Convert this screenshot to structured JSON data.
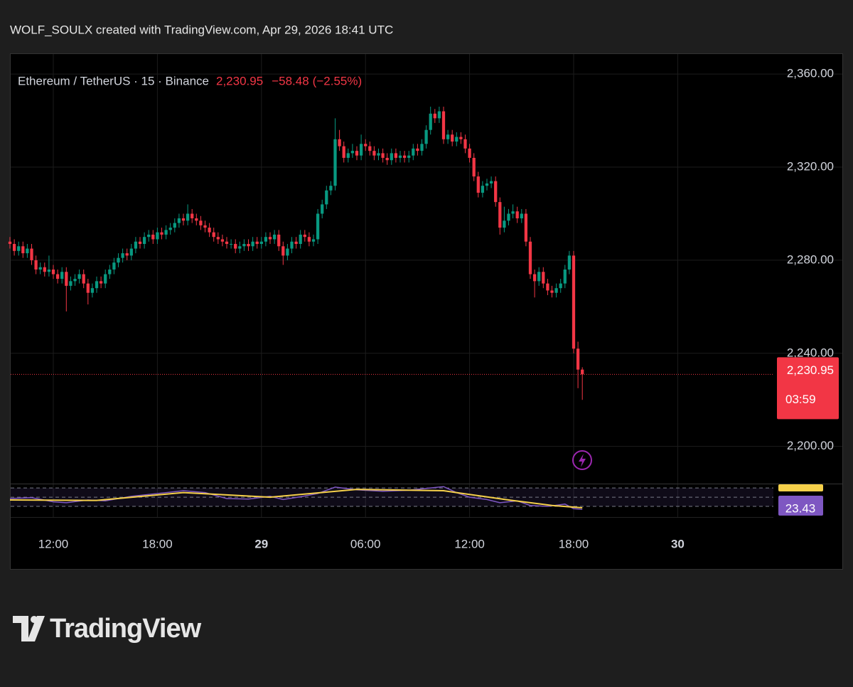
{
  "chart_data": {
    "type": "candlestick",
    "title": "WOLF_SOULX created with TradingView.com, Apr 29, 2026 18:41 UTC",
    "symbol": "Ethereum / TetherUS · 15 · Binance",
    "last_price": {
      "value": 2230.95,
      "label": "2,230.95"
    },
    "change": {
      "value": -58.48,
      "label": "−58.48"
    },
    "change_pct": {
      "value": -2.55,
      "label": "(−2.55%)"
    },
    "countdown": "03:59",
    "brand": "TradingView",
    "up_color": "#089981",
    "down_color": "#f23645",
    "grid": true,
    "ylim": [
      2184,
      2368
    ],
    "yticks": [
      {
        "value": 2200,
        "label": "2,200.00"
      },
      {
        "value": 2240,
        "label": "2,240.00"
      },
      {
        "value": 2280,
        "label": "2,280.00"
      },
      {
        "value": 2320,
        "label": "2,320.00"
      },
      {
        "value": 2360,
        "label": "2,360.00"
      }
    ],
    "xlim": [
      0,
      176
    ],
    "xticks": [
      {
        "value": 10,
        "label": "12:00"
      },
      {
        "value": 34,
        "label": "18:00"
      },
      {
        "value": 58,
        "label": "29",
        "bold": true
      },
      {
        "value": 82,
        "label": "06:00"
      },
      {
        "value": 106,
        "label": "12:00"
      },
      {
        "value": 130,
        "label": "18:00"
      },
      {
        "value": 154,
        "label": "30",
        "bold": true
      }
    ],
    "open": [
      2288,
      2287,
      2284,
      2286,
      2283,
      2285,
      2280,
      2276,
      2277,
      2275,
      2276,
      2274,
      2272,
      2275,
      2269,
      2271,
      2272,
      2274,
      2270,
      2266,
      2268,
      2271,
      2270,
      2274,
      2276,
      2279,
      2281,
      2283,
      2282,
      2285,
      2288,
      2287,
      2290,
      2291,
      2289,
      2292,
      2291,
      2293,
      2294,
      2296,
      2298,
      2297,
      2300,
      2298,
      2297,
      2295,
      2294,
      2292,
      2290,
      2289,
      2288,
      2287,
      2287,
      2285,
      2286,
      2287,
      2286,
      2288,
      2287,
      2288,
      2290,
      2289,
      2291,
      2286,
      2282,
      2285,
      2288,
      2287,
      2291,
      2290,
      2288,
      2289,
      2300,
      2304,
      2310,
      2312,
      2332,
      2329,
      2324,
      2326,
      2327,
      2325,
      2330,
      2329,
      2327,
      2325,
      2326,
      2324,
      2323,
      2326,
      2324,
      2325,
      2324,
      2325,
      2328,
      2327,
      2330,
      2336,
      2343,
      2341,
      2344,
      2332,
      2334,
      2331,
      2333,
      2332,
      2328,
      2324,
      2316,
      2309,
      2312,
      2313,
      2314,
      2305,
      2294,
      2297,
      2300,
      2301,
      2298,
      2300,
      2288,
      2274,
      2271,
      2275,
      2270,
      2267,
      2266,
      2268,
      2270,
      2276,
      2282,
      2242,
      2233
    ],
    "high": [
      2290,
      2289,
      2288,
      2288,
      2287,
      2287,
      2282,
      2279,
      2279,
      2282,
      2278,
      2276,
      2277,
      2277,
      2273,
      2274,
      2276,
      2276,
      2272,
      2270,
      2273,
      2273,
      2276,
      2278,
      2281,
      2283,
      2285,
      2285,
      2287,
      2290,
      2290,
      2292,
      2293,
      2293,
      2294,
      2294,
      2295,
      2296,
      2298,
      2300,
      2300,
      2304,
      2302,
      2300,
      2299,
      2297,
      2296,
      2294,
      2292,
      2291,
      2290,
      2289,
      2289,
      2288,
      2289,
      2289,
      2290,
      2290,
      2290,
      2292,
      2292,
      2293,
      2293,
      2288,
      2287,
      2290,
      2290,
      2293,
      2293,
      2292,
      2291,
      2302,
      2306,
      2312,
      2314,
      2341,
      2336,
      2331,
      2328,
      2330,
      2329,
      2334,
      2332,
      2331,
      2329,
      2328,
      2328,
      2326,
      2328,
      2328,
      2327,
      2327,
      2327,
      2330,
      2330,
      2332,
      2338,
      2346,
      2345,
      2346,
      2346,
      2336,
      2336,
      2335,
      2335,
      2334,
      2330,
      2326,
      2318,
      2314,
      2315,
      2316,
      2316,
      2307,
      2303,
      2302,
      2304,
      2303,
      2302,
      2302,
      2290,
      2276,
      2277,
      2277,
      2272,
      2269,
      2270,
      2272,
      2278,
      2284,
      2284,
      2245,
      2234
    ],
    "low": [
      2285,
      2282,
      2282,
      2281,
      2281,
      2278,
      2274,
      2274,
      2273,
      2273,
      2272,
      2270,
      2270,
      2258,
      2267,
      2269,
      2270,
      2268,
      2261,
      2264,
      2266,
      2268,
      2268,
      2272,
      2274,
      2277,
      2279,
      2280,
      2280,
      2283,
      2285,
      2285,
      2288,
      2287,
      2287,
      2289,
      2289,
      2291,
      2292,
      2294,
      2295,
      2295,
      2296,
      2295,
      2293,
      2292,
      2290,
      2288,
      2287,
      2286,
      2285,
      2285,
      2283,
      2283,
      2284,
      2284,
      2284,
      2285,
      2285,
      2286,
      2287,
      2287,
      2284,
      2278,
      2280,
      2283,
      2285,
      2285,
      2288,
      2286,
      2286,
      2287,
      2298,
      2302,
      2308,
      2310,
      2327,
      2322,
      2322,
      2324,
      2323,
      2323,
      2327,
      2325,
      2323,
      2323,
      2322,
      2321,
      2321,
      2322,
      2322,
      2322,
      2322,
      2323,
      2325,
      2325,
      2328,
      2334,
      2339,
      2339,
      2330,
      2330,
      2329,
      2329,
      2330,
      2326,
      2322,
      2314,
      2307,
      2307,
      2310,
      2311,
      2303,
      2291,
      2292,
      2295,
      2298,
      2296,
      2296,
      2286,
      2272,
      2264,
      2269,
      2268,
      2265,
      2264,
      2264,
      2266,
      2268,
      2274,
      2240,
      2225,
      2220
    ],
    "close": [
      2287,
      2284,
      2286,
      2283,
      2285,
      2280,
      2276,
      2277,
      2275,
      2276,
      2274,
      2272,
      2275,
      2269,
      2271,
      2272,
      2274,
      2270,
      2266,
      2268,
      2271,
      2270,
      2274,
      2276,
      2279,
      2281,
      2283,
      2282,
      2285,
      2288,
      2287,
      2290,
      2291,
      2289,
      2292,
      2291,
      2293,
      2294,
      2296,
      2298,
      2297,
      2300,
      2298,
      2297,
      2295,
      2294,
      2292,
      2290,
      2289,
      2288,
      2287,
      2287,
      2285,
      2286,
      2287,
      2286,
      2288,
      2287,
      2288,
      2290,
      2289,
      2291,
      2286,
      2282,
      2285,
      2288,
      2287,
      2291,
      2290,
      2288,
      2289,
      2300,
      2304,
      2310,
      2312,
      2332,
      2329,
      2324,
      2326,
      2327,
      2325,
      2330,
      2329,
      2327,
      2325,
      2326,
      2324,
      2323,
      2326,
      2324,
      2325,
      2324,
      2325,
      2328,
      2327,
      2330,
      2336,
      2343,
      2341,
      2344,
      2332,
      2334,
      2331,
      2333,
      2332,
      2328,
      2324,
      2316,
      2309,
      2312,
      2313,
      2314,
      2305,
      2294,
      2297,
      2300,
      2301,
      2298,
      2300,
      2288,
      2274,
      2271,
      2275,
      2270,
      2267,
      2266,
      2268,
      2270,
      2276,
      2282,
      2242,
      2233,
      2230.95
    ],
    "rsi": {
      "color": "#7e57c2",
      "x": [
        0,
        5,
        10,
        13,
        18,
        22,
        28,
        34,
        40,
        45,
        50,
        55,
        60,
        63,
        67,
        71,
        75,
        80,
        86,
        92,
        97,
        100,
        103,
        106,
        110,
        113,
        117,
        120,
        124,
        128,
        130,
        132
      ],
      "values": [
        47,
        49,
        40,
        38,
        44,
        42,
        52,
        58,
        64,
        60,
        47,
        46,
        52,
        45,
        51,
        58,
        72,
        66,
        63,
        65,
        70,
        73,
        60,
        50,
        45,
        38,
        42,
        32,
        30,
        35,
        25,
        23.43
      ]
    },
    "ma": {
      "color": "#f5d04a",
      "x": [
        0,
        20,
        40,
        60,
        80,
        100,
        115,
        125,
        132
      ],
      "values": [
        44,
        43,
        60,
        50,
        67,
        64,
        44,
        32,
        27
      ]
    },
    "rsi_ylim": [
      10,
      78
    ],
    "rsi_levels": [
      70,
      50,
      30
    ]
  }
}
